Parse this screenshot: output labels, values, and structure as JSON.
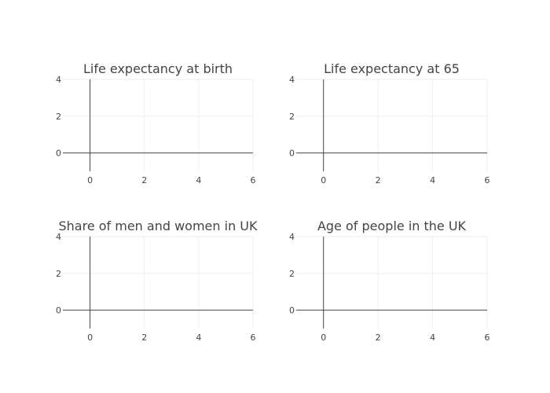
{
  "chart_data": [
    {
      "type": "line",
      "title": "Life expectancy at birth",
      "xlabel": "",
      "ylabel": "",
      "xlim": [
        -1,
        6
      ],
      "ylim": [
        -1,
        4
      ],
      "xticks": [
        0,
        2,
        4,
        6
      ],
      "yticks": [
        0,
        2,
        4
      ],
      "grid": true,
      "series": []
    },
    {
      "type": "line",
      "title": "Life expectancy at 65",
      "xlabel": "",
      "ylabel": "",
      "xlim": [
        -1,
        6
      ],
      "ylim": [
        -1,
        4
      ],
      "xticks": [
        0,
        2,
        4,
        6
      ],
      "yticks": [
        0,
        2,
        4
      ],
      "grid": true,
      "series": []
    },
    {
      "type": "line",
      "title": "Share of men and women in UK",
      "xlabel": "",
      "ylabel": "",
      "xlim": [
        -1,
        6
      ],
      "ylim": [
        -1,
        4
      ],
      "xticks": [
        0,
        2,
        4,
        6
      ],
      "yticks": [
        0,
        2,
        4
      ],
      "grid": true,
      "series": []
    },
    {
      "type": "line",
      "title": "Age of people in the UK",
      "xlabel": "",
      "ylabel": "",
      "xlim": [
        -1,
        6
      ],
      "ylim": [
        -1,
        4
      ],
      "xticks": [
        0,
        2,
        4,
        6
      ],
      "yticks": [
        0,
        2,
        4
      ],
      "grid": true,
      "series": []
    }
  ],
  "colors": {
    "background": "#ffffff",
    "gridline": "#eeeeee",
    "zeroline": "#444444",
    "text": "#444444"
  }
}
